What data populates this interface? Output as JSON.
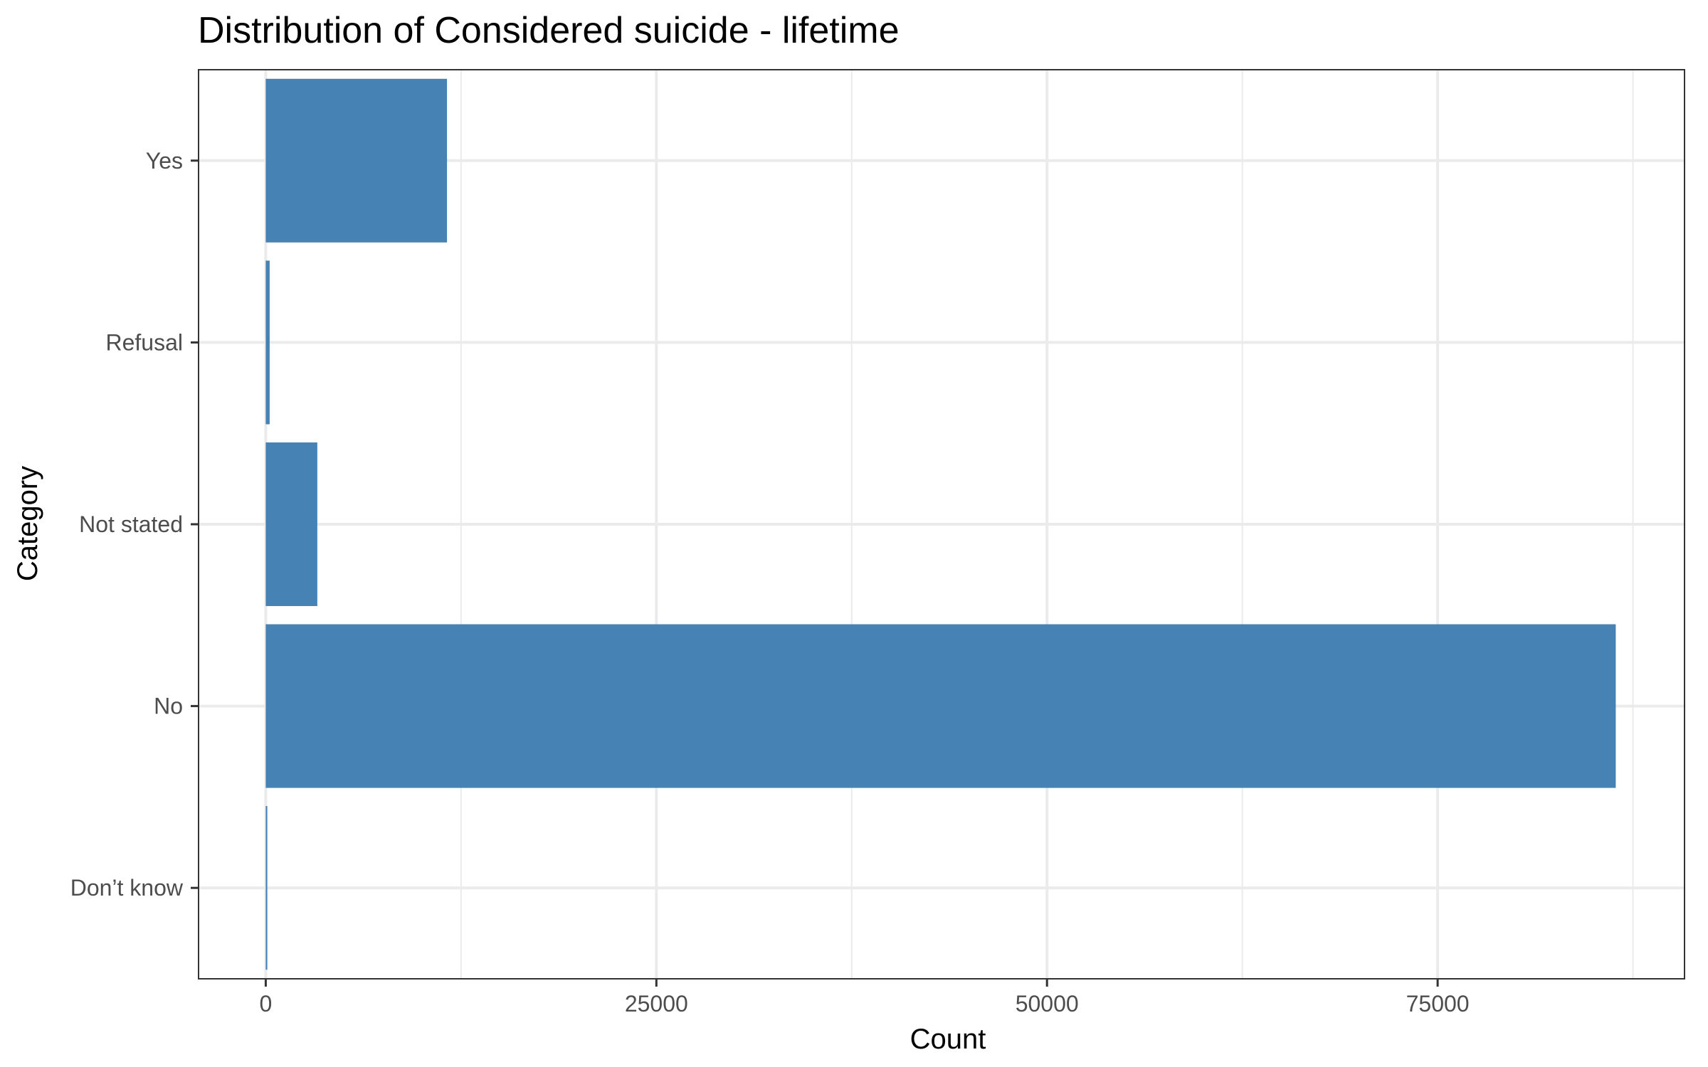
{
  "chart_data": {
    "type": "bar",
    "orientation": "horizontal",
    "title": "Distribution of Considered suicide - lifetime",
    "xlabel": "Count",
    "ylabel": "Category",
    "categories": [
      "Yes",
      "Refusal",
      "Not stated",
      "No",
      "Don’t know"
    ],
    "values": [
      11600,
      250,
      3300,
      86400,
      100
    ],
    "xlim": [
      -4300,
      90800
    ],
    "xticks": [
      0,
      25000,
      50000,
      75000
    ],
    "xtick_labels": [
      "0",
      "25000",
      "50000",
      "75000"
    ],
    "grid": true,
    "legend": "none",
    "colors": {
      "bar": "#4682b4",
      "grid": "#ebebeb",
      "panel_border": "#333333",
      "tick_label": "#4d4d4d",
      "title": "#000000"
    }
  }
}
